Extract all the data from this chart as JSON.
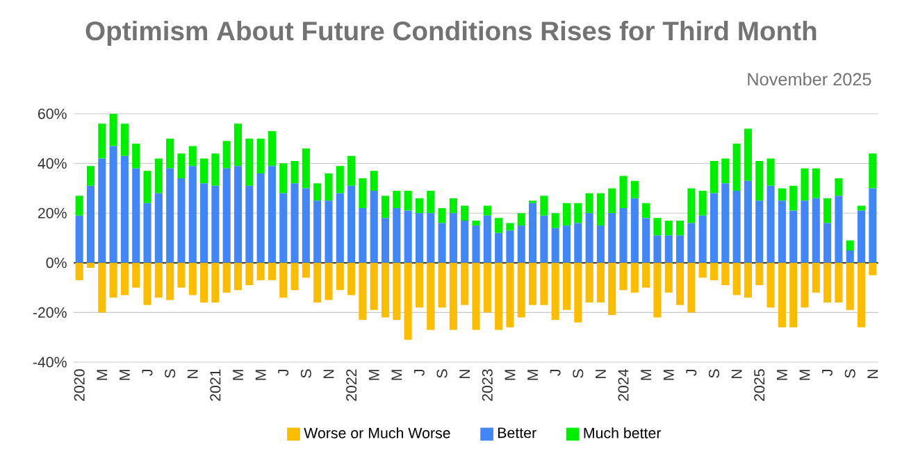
{
  "chart_data": {
    "type": "bar",
    "stacked": true,
    "title": "Optimism About Future Conditions Rises for Third Month",
    "subtitle": "November 2025",
    "categories": [
      "2020",
      null,
      "M",
      null,
      "M",
      null,
      "J",
      null,
      "S",
      null,
      "N",
      null,
      "2021",
      null,
      "M",
      null,
      "M",
      null,
      "J",
      null,
      "S",
      null,
      "N",
      null,
      "2022",
      null,
      "M",
      null,
      "M",
      null,
      "J",
      null,
      "S",
      null,
      "N",
      null,
      "2023",
      null,
      "M",
      null,
      "M",
      null,
      "J",
      null,
      "S",
      null,
      "N",
      null,
      "2024",
      null,
      "M",
      null,
      "M",
      null,
      "J",
      null,
      "S",
      null,
      "N",
      null,
      "2025",
      null,
      "M",
      null,
      "M",
      null,
      "J",
      null,
      "S",
      null,
      "N"
    ],
    "series": [
      {
        "name": "Worse or Much Worse",
        "color": "#fbbc04",
        "values": [
          -7,
          -2,
          -20,
          -14,
          -13,
          -10,
          -17,
          -14,
          -15,
          -10,
          -13,
          -16,
          -16,
          -12,
          -11,
          -9,
          -7,
          -7,
          -14,
          -11,
          -6,
          -16,
          -15,
          -11,
          -13,
          -23,
          -19,
          -22,
          -23,
          -31,
          -18,
          -27,
          -18,
          -27,
          -17,
          -27,
          -20,
          -27,
          -26,
          -22,
          -17,
          -17,
          -23,
          -19,
          -24,
          -16,
          -16,
          -21,
          -11,
          -12,
          -10,
          -22,
          -12,
          -17,
          -20,
          -6,
          -7,
          -9,
          -13,
          -14,
          -9,
          -18,
          -26,
          -26,
          -18,
          -12,
          -16,
          -16,
          -19,
          -26,
          -5
        ]
      },
      {
        "name": "Better",
        "color": "#4285f4",
        "values": [
          19,
          31,
          42,
          47,
          43,
          38,
          24,
          28,
          38,
          34,
          39,
          32,
          31,
          38,
          39,
          31,
          36,
          39,
          28,
          32,
          30,
          25,
          25,
          28,
          31,
          22,
          29,
          18,
          22,
          21,
          20,
          20,
          16,
          20,
          17,
          15,
          19,
          12,
          13,
          15,
          24,
          19,
          14,
          15,
          16,
          20,
          15,
          20,
          22,
          26,
          18,
          11,
          11,
          11,
          16,
          19,
          28,
          32,
          29,
          33,
          25,
          31,
          25,
          21,
          25,
          26,
          16,
          27,
          5,
          21,
          30
        ]
      },
      {
        "name": "Much better",
        "color": "#00ee00",
        "values": [
          8,
          8,
          14,
          13,
          13,
          10,
          13,
          14,
          12,
          10,
          8,
          10,
          13,
          11,
          17,
          19,
          14,
          14,
          12,
          9,
          16,
          7,
          11,
          11,
          12,
          12,
          8,
          9,
          7,
          8,
          6,
          9,
          6,
          6,
          6,
          2,
          4,
          6,
          3,
          5,
          1,
          8,
          6,
          9,
          8,
          8,
          13,
          10,
          13,
          7,
          6,
          7,
          6,
          6,
          14,
          10,
          13,
          10,
          19,
          21,
          16,
          11,
          5,
          10,
          13,
          12,
          10,
          7,
          4,
          2,
          14
        ]
      }
    ],
    "ylim": [
      -40,
      60
    ],
    "yticks": [
      {
        "value": -40,
        "label": "-40%"
      },
      {
        "value": -20,
        "label": "-20%"
      },
      {
        "value": 0,
        "label": "0%"
      },
      {
        "value": 20,
        "label": "20%"
      },
      {
        "value": 40,
        "label": "40%"
      },
      {
        "value": 60,
        "label": "60%"
      }
    ],
    "grid": "y",
    "legend": "bottom"
  }
}
